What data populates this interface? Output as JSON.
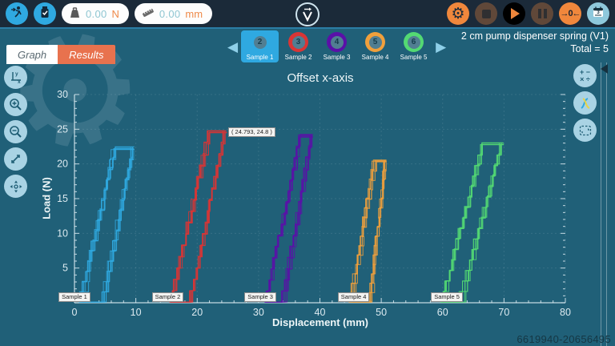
{
  "header": {
    "exit_icon": "exit-run-icon",
    "device_icon": "usb-sensor-icon",
    "force_readout": {
      "value": "0.00",
      "unit": "N"
    },
    "displacement_readout": {
      "value": "0.00",
      "unit": "mm"
    },
    "logo": "vernier-vector-v",
    "zero_label": "→0←",
    "collection_badge": "3"
  },
  "tabs": {
    "graph": "Graph",
    "results": "Results"
  },
  "samples": {
    "items": [
      {
        "label": "Sample 1",
        "badge": "2",
        "color": "#2fa9e1",
        "selected": true
      },
      {
        "label": "Sample 2",
        "badge": "3",
        "color": "#d93535",
        "selected": false
      },
      {
        "label": "Sample 3",
        "badge": "4",
        "color": "#5a10a8",
        "selected": false
      },
      {
        "label": "Sample 4",
        "badge": "5",
        "color": "#f0a03c",
        "selected": false
      },
      {
        "label": "Sample 5",
        "badge": "6",
        "color": "#53d973",
        "selected": false
      }
    ]
  },
  "session": {
    "title": "2 cm pump dispenser spring (V1)",
    "total": "Total  =  5"
  },
  "chart_data": {
    "type": "line",
    "title": "Offset x-axis",
    "xlabel": "Displacement (mm)",
    "ylabel": "Load (N)",
    "xlim": [
      0,
      80
    ],
    "ylim": [
      0,
      30
    ],
    "x_ticks": [
      0,
      10,
      20,
      30,
      40,
      50,
      60,
      70,
      80
    ],
    "y_ticks": [
      5,
      10,
      15,
      20,
      25,
      30
    ],
    "x_minor_step": 2,
    "y_minor_step": 1,
    "grid": true,
    "legend": "none",
    "annotation": {
      "text": "( 24.793, 24.8 )",
      "x": 24.793,
      "y": 24.8
    },
    "series": [
      {
        "name": "Sample 1",
        "color": "#2fa9e1",
        "x_start": 1.0,
        "x_top_left": 6.3,
        "x_top_right": 9.7,
        "x_bottom_right": 4.7,
        "peak_load": 22.5,
        "cycles": 6,
        "label_x": 0.8
      },
      {
        "name": "Sample 2",
        "color": "#d93535",
        "x_start": 15.5,
        "x_top_left": 21.8,
        "x_top_right": 24.8,
        "x_bottom_right": 19.0,
        "peak_load": 24.8,
        "cycles": 6,
        "label_x": 16.0
      },
      {
        "name": "Sample 3",
        "color": "#5a10a8",
        "x_start": 30.8,
        "x_top_left": 36.8,
        "x_top_right": 38.8,
        "x_bottom_right": 34.2,
        "peak_load": 24.3,
        "cycles": 6,
        "label_x": 31.1
      },
      {
        "name": "Sample 4",
        "color": "#f0a03c",
        "x_start": 45.0,
        "x_top_left": 48.7,
        "x_top_right": 50.8,
        "x_bottom_right": 48.2,
        "peak_load": 20.6,
        "cycles": 6,
        "label_x": 46.3
      },
      {
        "name": "Sample 5",
        "color": "#53d973",
        "x_start": 59.8,
        "x_top_left": 66.4,
        "x_top_right": 69.9,
        "x_bottom_right": 63.2,
        "peak_load": 23.2,
        "cycles": 6,
        "label_x": 61.5
      }
    ]
  },
  "watermark": "6619940-20656495"
}
